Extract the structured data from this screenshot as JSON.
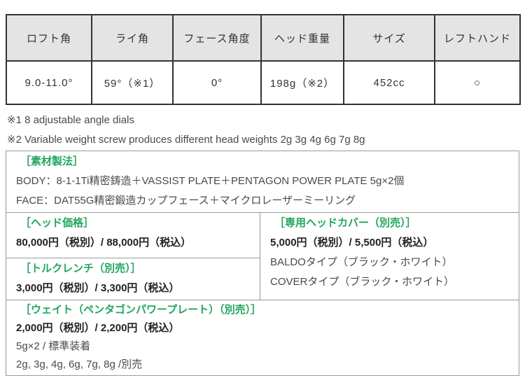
{
  "spec_table": {
    "headers": [
      "ロフト角",
      "ライ角",
      "フェース角度",
      "ヘッド重量",
      "サイズ",
      "レフトハンド"
    ],
    "values": [
      "9.0-11.0°",
      "59°（※1）",
      "0°",
      "198g（※2）",
      "452cc",
      "○"
    ]
  },
  "notes": {
    "note1": "※1  8 adjustable angle dials",
    "note2": "※2 Variable weight screw produces different head weights 2g 3g 4g 6g 7g 8g"
  },
  "material": {
    "title": "［素材製法］",
    "body_line": "BODY：8-1-1Ti精密鋳造＋VASSIST PLATE＋PENTAGON POWER PLATE 5g×2個",
    "face_line": "FACE：DAT55G精密鍛造カップフェース＋マイクロレーザーミーリング"
  },
  "head_price": {
    "title": "［ヘッド価格］",
    "price": "80,000円（税別）/ 88,000円（税込）"
  },
  "head_cover": {
    "title": "［専用ヘッドカバー（別売）］",
    "price": "5,000円（税別）/ 5,500円（税込）",
    "type1": "BALDOタイプ（ブラック・ホワイト）",
    "type2": "COVERタイプ（ブラック・ホワイト）"
  },
  "torque_wrench": {
    "title": "［トルクレンチ（別売）］",
    "price": "3,000円（税別）/ 3,300円（税込）"
  },
  "weight": {
    "title": "［ウェイト（ペンタゴンパワープレート）（別売）］",
    "price": "2,000円（税別）/ 2,200円（税込）",
    "standard": "5g×2 / 標準装着",
    "optional": "2g, 3g, 4g, 6g, 7g, 8g /別売"
  },
  "colors": {
    "accent_green": "#21a55e",
    "table_border": "#333333",
    "box_border": "#9a9a9a",
    "header_bg": "#e4e4e4"
  }
}
